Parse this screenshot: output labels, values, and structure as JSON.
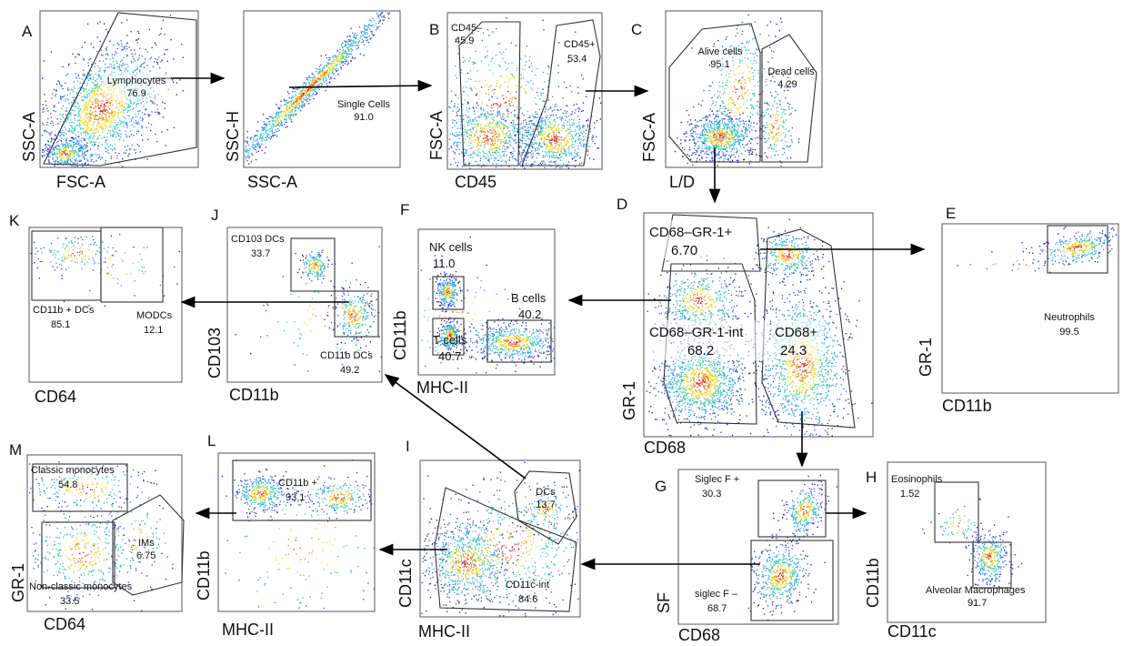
{
  "panels": {
    "A": {
      "letter": "A",
      "xaxis": "FSC-A",
      "yaxis": "SSC-A",
      "gates": [
        {
          "name": "Lymphocytes",
          "value": "76.9"
        }
      ]
    },
    "A2": {
      "letter": "",
      "xaxis": "SSC-A",
      "yaxis": "SSC-H",
      "gates": [
        {
          "name": "Single Cells",
          "value": "91.0"
        }
      ]
    },
    "B": {
      "letter": "B",
      "xaxis": "CD45",
      "yaxis": "FSC-A",
      "gates": [
        {
          "name": "CD45–",
          "value": "45.9"
        },
        {
          "name": "CD45+",
          "value": "53.4"
        }
      ]
    },
    "C": {
      "letter": "C",
      "xaxis": "L/D",
      "yaxis": "FSC-A",
      "gates": [
        {
          "name": "Alive cells",
          "value": "95.1"
        },
        {
          "name": "Dead cells",
          "value": "4.29"
        }
      ]
    },
    "D": {
      "letter": "D",
      "xaxis": "CD68",
      "yaxis": "GR-1",
      "gates": [
        {
          "name": "CD68–GR-1+",
          "value": "6.70"
        },
        {
          "name": "CD68–GR-1-int",
          "value": "68.2"
        },
        {
          "name": "CD68+",
          "value": "24.3"
        }
      ]
    },
    "E": {
      "letter": "E",
      "xaxis": "CD11b",
      "yaxis": "GR-1",
      "gates": [
        {
          "name": "Neutrophils",
          "value": "99.5"
        }
      ]
    },
    "F": {
      "letter": "F",
      "xaxis": "MHC-II",
      "yaxis": "CD11b",
      "gates": [
        {
          "name": "NK cells",
          "value": "11.0"
        },
        {
          "name": "B cells",
          "value": "40.2"
        },
        {
          "name": "T cells",
          "value": "40.7"
        }
      ]
    },
    "J": {
      "letter": "J",
      "xaxis": "CD11b",
      "yaxis": "CD103",
      "gates": [
        {
          "name": "CD103 DCs",
          "value": "33.7"
        },
        {
          "name": "CD11b DCs",
          "value": "49.2"
        }
      ]
    },
    "K": {
      "letter": "K",
      "xaxis": "CD64",
      "yaxis": "",
      "gates": [
        {
          "name": "CD11b + DCs",
          "value": "85.1"
        },
        {
          "name": "MODCs",
          "value": "12.1"
        }
      ]
    },
    "M": {
      "letter": "M",
      "xaxis": "CD64",
      "yaxis": "GR-1",
      "gates": [
        {
          "name": "Classic monocytes",
          "value": "54.8"
        },
        {
          "name": "IMs",
          "value": "6.75"
        },
        {
          "name": "Non-classic monocytes",
          "value": "33.5"
        }
      ]
    },
    "L": {
      "letter": "L",
      "xaxis": "MHC-II",
      "yaxis": "CD11b",
      "gates": [
        {
          "name": "CD11b +",
          "value": "93.1"
        }
      ]
    },
    "I": {
      "letter": "I",
      "xaxis": "MHC-II",
      "yaxis": "CD11c",
      "gates": [
        {
          "name": "DCs",
          "value": "13.7"
        },
        {
          "name": "CD11c-int",
          "value": "84.6"
        }
      ]
    },
    "G": {
      "letter": "G",
      "xaxis": "CD68",
      "yaxis": "SF",
      "gates": [
        {
          "name": "Siglec F +",
          "value": "30.3"
        },
        {
          "name": "siglec F –",
          "value": "68.7"
        }
      ]
    },
    "H": {
      "letter": "H",
      "xaxis": "CD11c",
      "yaxis": "CD11b",
      "gates": [
        {
          "name": "Eosinophils",
          "value": "1.52"
        },
        {
          "name": "Alveolar Macrophages",
          "value": "91.7"
        }
      ]
    }
  }
}
